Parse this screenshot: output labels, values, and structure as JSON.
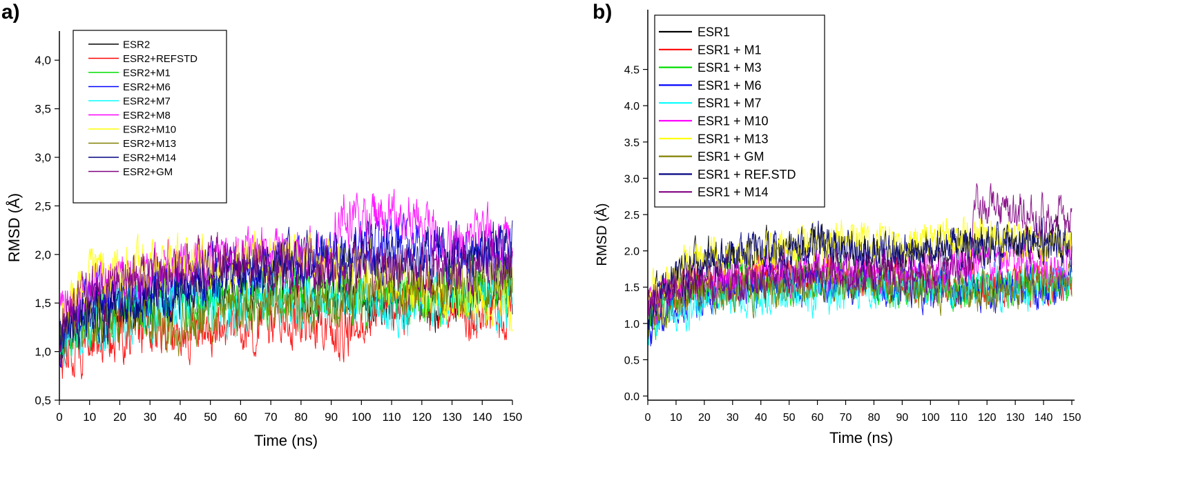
{
  "chart_data": [
    {
      "type": "line",
      "panel_label": "a)",
      "xlabel": "Time (ns)",
      "ylabel": "RMSD (Å)",
      "xlim": [
        0,
        150
      ],
      "ylim": [
        0.5,
        4.3
      ],
      "xticks": [
        0,
        10,
        20,
        30,
        40,
        50,
        60,
        70,
        80,
        90,
        100,
        110,
        120,
        130,
        140,
        150
      ],
      "xtick_labels": [
        "0",
        "10",
        "20",
        "30",
        "40",
        "50",
        "60",
        "70",
        "80",
        "90",
        "100",
        "110",
        "120",
        "130",
        "140",
        "150"
      ],
      "yticks": [
        0.5,
        1.0,
        1.5,
        2.0,
        2.5,
        3.0,
        3.5,
        4.0
      ],
      "ytick_labels": [
        "0,5",
        "1,0",
        "1,5",
        "2,0",
        "2,5",
        "3,0",
        "3,5",
        "4,0"
      ],
      "grid": false,
      "legend_position": "top-left",
      "series": [
        {
          "name": "ESR2",
          "color": "#000000",
          "x": [
            0,
            5,
            10,
            20,
            30,
            40,
            50,
            60,
            70,
            80,
            90,
            100,
            110,
            120,
            130,
            140,
            150
          ],
          "y": [
            1.1,
            1.35,
            1.4,
            1.45,
            1.5,
            1.55,
            1.6,
            1.62,
            1.65,
            1.6,
            1.6,
            1.55,
            1.55,
            1.5,
            1.55,
            1.6,
            1.6
          ]
        },
        {
          "name": "ESR2+REFSTD",
          "color": "#ff0000",
          "x": [
            0,
            5,
            10,
            20,
            30,
            40,
            50,
            60,
            70,
            80,
            90,
            95,
            100,
            105,
            110,
            120,
            125,
            130,
            140,
            150
          ],
          "y": [
            0.9,
            1.05,
            1.1,
            1.2,
            1.2,
            1.25,
            1.2,
            1.25,
            1.3,
            1.35,
            1.3,
            1.2,
            1.3,
            1.45,
            1.45,
            1.5,
            1.45,
            1.4,
            1.4,
            1.4
          ]
        },
        {
          "name": "ESR2+M1",
          "color": "#00dd00",
          "x": [
            0,
            5,
            10,
            20,
            30,
            40,
            50,
            60,
            70,
            80,
            90,
            100,
            110,
            120,
            130,
            140,
            150
          ],
          "y": [
            1.0,
            1.2,
            1.3,
            1.4,
            1.45,
            1.5,
            1.5,
            1.55,
            1.55,
            1.6,
            1.6,
            1.6,
            1.55,
            1.5,
            1.6,
            1.65,
            1.7
          ]
        },
        {
          "name": "ESR2+M6",
          "color": "#0000ff",
          "x": [
            0,
            5,
            10,
            20,
            30,
            40,
            50,
            60,
            70,
            80,
            90,
            100,
            110,
            120,
            130,
            140,
            150
          ],
          "y": [
            1.1,
            1.3,
            1.5,
            1.6,
            1.65,
            1.7,
            1.8,
            1.85,
            1.85,
            1.9,
            2.0,
            2.05,
            2.1,
            2.05,
            2.0,
            2.0,
            2.0
          ]
        },
        {
          "name": "ESR2+M7",
          "color": "#00ffff",
          "x": [
            0,
            5,
            10,
            20,
            30,
            40,
            50,
            60,
            70,
            80,
            90,
            100,
            110,
            120,
            130,
            140,
            150
          ],
          "y": [
            1.0,
            1.2,
            1.3,
            1.35,
            1.45,
            1.4,
            1.45,
            1.45,
            1.5,
            1.5,
            1.55,
            1.55,
            1.5,
            1.5,
            1.5,
            1.5,
            1.5
          ]
        },
        {
          "name": "ESR2+M8",
          "color": "#ff00ff",
          "x": [
            0,
            5,
            10,
            20,
            30,
            40,
            50,
            60,
            70,
            80,
            90,
            92,
            100,
            110,
            120,
            125,
            130,
            140,
            150
          ],
          "y": [
            1.3,
            1.5,
            1.7,
            1.8,
            1.85,
            1.9,
            1.95,
            2.0,
            2.0,
            1.95,
            2.0,
            2.35,
            2.4,
            2.4,
            2.35,
            2.15,
            2.1,
            2.2,
            2.05
          ]
        },
        {
          "name": "ESR2+M10",
          "color": "#ffff00",
          "x": [
            0,
            5,
            10,
            20,
            30,
            40,
            50,
            60,
            70,
            80,
            90,
            100,
            110,
            120,
            130,
            140,
            150
          ],
          "y": [
            1.4,
            1.6,
            1.75,
            1.8,
            1.85,
            1.9,
            1.9,
            1.95,
            1.9,
            1.95,
            1.9,
            1.85,
            1.7,
            1.6,
            1.55,
            1.5,
            1.55
          ]
        },
        {
          "name": "ESR2+M13",
          "color": "#808000",
          "x": [
            0,
            5,
            10,
            20,
            30,
            33,
            40,
            50,
            60,
            70,
            80,
            90,
            100,
            110,
            120,
            130,
            140,
            150
          ],
          "y": [
            1.1,
            1.3,
            1.35,
            1.35,
            1.3,
            1.15,
            1.3,
            1.4,
            1.45,
            1.5,
            1.5,
            1.55,
            1.6,
            1.65,
            1.65,
            1.7,
            1.75,
            1.75
          ]
        },
        {
          "name": "ESR2+M14",
          "color": "#000080",
          "x": [
            0,
            5,
            10,
            20,
            30,
            40,
            50,
            60,
            70,
            80,
            90,
            100,
            110,
            120,
            130,
            140,
            150
          ],
          "y": [
            1.1,
            1.25,
            1.35,
            1.45,
            1.5,
            1.6,
            1.75,
            1.85,
            1.9,
            1.95,
            1.95,
            1.95,
            2.0,
            2.0,
            2.05,
            2.05,
            2.1
          ]
        },
        {
          "name": "ESR2+GM",
          "color": "#800080",
          "x": [
            0,
            5,
            10,
            20,
            30,
            40,
            50,
            60,
            70,
            80,
            90,
            100,
            110,
            120,
            130,
            140,
            150
          ],
          "y": [
            1.2,
            1.45,
            1.55,
            1.65,
            1.75,
            1.8,
            1.9,
            1.95,
            1.9,
            1.85,
            1.85,
            1.85,
            1.85,
            1.8,
            1.85,
            1.9,
            1.9
          ]
        }
      ]
    },
    {
      "type": "line",
      "panel_label": "b)",
      "xlabel": "Time (ns)",
      "ylabel": "RMSD (Å)",
      "xlim": [
        0,
        150
      ],
      "ylim": [
        0.0,
        5.0
      ],
      "xticks": [
        0,
        10,
        20,
        30,
        40,
        50,
        60,
        70,
        80,
        90,
        100,
        110,
        120,
        130,
        140,
        150
      ],
      "xtick_labels": [
        "0",
        "10",
        "20",
        "30",
        "40",
        "50",
        "60",
        "70",
        "80",
        "90",
        "100",
        "110",
        "120",
        "130",
        "140",
        "150"
      ],
      "yticks": [
        0.0,
        0.5,
        1.0,
        1.5,
        2.0,
        2.5,
        3.0,
        3.5,
        4.0,
        4.5
      ],
      "ytick_labels": [
        "0.0",
        "0.5",
        "1.0",
        "1.5",
        "2.0",
        "2.5",
        "3.0",
        "3.5",
        "4.0",
        "4.5"
      ],
      "grid": false,
      "legend_position": "top-left",
      "series": [
        {
          "name": "ESR1",
          "color": "#000000",
          "x": [
            0,
            5,
            10,
            20,
            30,
            40,
            50,
            60,
            70,
            80,
            90,
            100,
            110,
            120,
            130,
            140,
            150
          ],
          "y": [
            1.2,
            1.5,
            1.7,
            1.9,
            2.0,
            2.0,
            2.05,
            2.1,
            2.0,
            1.95,
            1.95,
            2.0,
            2.05,
            2.0,
            2.05,
            2.1,
            2.1
          ]
        },
        {
          "name": "ESR1 + M1",
          "color": "#ff0000",
          "x": [
            0,
            5,
            10,
            20,
            30,
            40,
            50,
            60,
            70,
            80,
            90,
            100,
            110,
            120,
            130,
            140,
            150
          ],
          "y": [
            1.1,
            1.3,
            1.4,
            1.5,
            1.55,
            1.6,
            1.6,
            1.65,
            1.6,
            1.6,
            1.55,
            1.55,
            1.5,
            1.5,
            1.55,
            1.55,
            1.6
          ]
        },
        {
          "name": "ESR1 + M3",
          "color": "#00dd00",
          "x": [
            0,
            5,
            10,
            20,
            30,
            40,
            50,
            60,
            70,
            80,
            90,
            100,
            110,
            120,
            130,
            140,
            150
          ],
          "y": [
            1.0,
            1.25,
            1.35,
            1.45,
            1.5,
            1.55,
            1.55,
            1.6,
            1.6,
            1.55,
            1.5,
            1.5,
            1.45,
            1.5,
            1.5,
            1.55,
            1.55
          ]
        },
        {
          "name": "ESR1 + M6",
          "color": "#0000ff",
          "x": [
            0,
            5,
            10,
            20,
            30,
            40,
            50,
            60,
            70,
            80,
            90,
            100,
            110,
            120,
            130,
            140,
            150
          ],
          "y": [
            0.9,
            1.1,
            1.3,
            1.45,
            1.5,
            1.55,
            1.55,
            1.6,
            1.55,
            1.55,
            1.5,
            1.5,
            1.5,
            1.5,
            1.5,
            1.5,
            1.5
          ]
        },
        {
          "name": "ESR1 + M7",
          "color": "#00ffff",
          "x": [
            0,
            5,
            10,
            20,
            30,
            40,
            50,
            60,
            70,
            80,
            90,
            100,
            110,
            120,
            130,
            140,
            150
          ],
          "y": [
            1.0,
            1.15,
            1.2,
            1.3,
            1.35,
            1.35,
            1.4,
            1.4,
            1.45,
            1.45,
            1.5,
            1.5,
            1.5,
            1.5,
            1.5,
            1.55,
            1.55
          ]
        },
        {
          "name": "ESR1 + M10",
          "color": "#ff00ff",
          "x": [
            0,
            5,
            10,
            20,
            30,
            40,
            50,
            60,
            70,
            80,
            90,
            100,
            110,
            120,
            130,
            140,
            150
          ],
          "y": [
            1.2,
            1.4,
            1.5,
            1.6,
            1.65,
            1.65,
            1.7,
            1.75,
            1.7,
            1.7,
            1.65,
            1.7,
            1.75,
            1.8,
            1.85,
            1.8,
            1.8
          ]
        },
        {
          "name": "ESR1 + M13",
          "color": "#ffff00",
          "x": [
            0,
            5,
            10,
            20,
            30,
            40,
            50,
            60,
            70,
            80,
            90,
            100,
            110,
            120,
            130,
            140,
            150
          ],
          "y": [
            1.3,
            1.55,
            1.7,
            1.85,
            1.95,
            2.0,
            2.05,
            2.1,
            2.2,
            2.1,
            2.05,
            2.15,
            2.2,
            2.2,
            2.15,
            2.1,
            2.1
          ]
        },
        {
          "name": "ESR1 + GM",
          "color": "#808000",
          "x": [
            0,
            5,
            10,
            20,
            30,
            40,
            50,
            60,
            70,
            80,
            90,
            100,
            110,
            120,
            130,
            140,
            150
          ],
          "y": [
            1.1,
            1.25,
            1.35,
            1.4,
            1.45,
            1.5,
            1.5,
            1.55,
            1.55,
            1.5,
            1.5,
            1.5,
            1.45,
            1.45,
            1.5,
            1.55,
            1.55
          ]
        },
        {
          "name": "ESR1 + REF.STD",
          "color": "#000080",
          "x": [
            0,
            5,
            10,
            20,
            30,
            40,
            50,
            60,
            70,
            80,
            90,
            100,
            110,
            120,
            130,
            140,
            150
          ],
          "y": [
            1.1,
            1.4,
            1.6,
            1.85,
            1.95,
            2.0,
            2.0,
            2.1,
            2.05,
            2.0,
            1.95,
            2.0,
            2.05,
            2.05,
            2.1,
            2.1,
            2.1
          ]
        },
        {
          "name": "ESR1 + M14",
          "color": "#800080",
          "x": [
            0,
            5,
            10,
            20,
            30,
            40,
            50,
            60,
            70,
            80,
            90,
            100,
            110,
            114,
            116,
            120,
            130,
            140,
            150
          ],
          "y": [
            1.3,
            1.4,
            1.5,
            1.55,
            1.6,
            1.6,
            1.65,
            1.7,
            1.7,
            1.7,
            1.65,
            1.7,
            1.75,
            1.8,
            2.6,
            2.6,
            2.55,
            2.5,
            2.45
          ]
        }
      ]
    }
  ]
}
